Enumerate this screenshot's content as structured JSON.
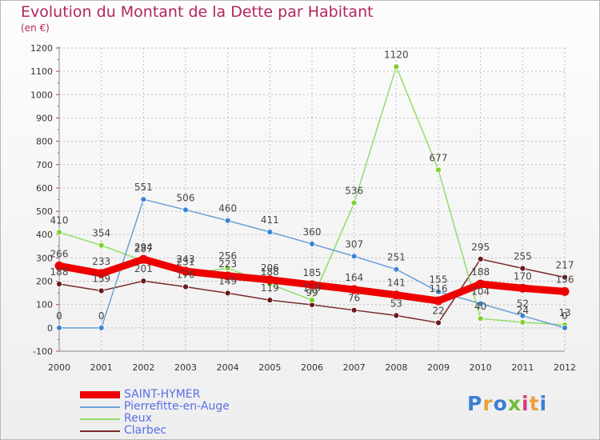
{
  "title": "Evolution du Montant de la Dette par Habitant",
  "subtitle": "(en €)",
  "logo": {
    "text": "Proxiti",
    "colors": [
      "#3a7fd5",
      "#e8a23c",
      "#3a7fd5",
      "#6fbf3a",
      "#d83a7f",
      "#e8a23c",
      "#3a7fd5"
    ]
  },
  "chart_data": {
    "type": "line",
    "x": [
      "2000",
      "2001",
      "2002",
      "2003",
      "2004",
      "2005",
      "2006",
      "2007",
      "2008",
      "2009",
      "2010",
      "2011",
      "2012"
    ],
    "ylim": [
      -100,
      1200
    ],
    "yticks": [
      -100,
      0,
      100,
      200,
      300,
      400,
      500,
      600,
      700,
      800,
      900,
      1000,
      1100,
      1200
    ],
    "grid": true,
    "legend_position": "bottom-left",
    "series": [
      {
        "name": "Clarbec",
        "color": "#7a2a2a",
        "marker": "#6b1a1a",
        "values": [
          188,
          159,
          201,
          176,
          149,
          119,
          99,
          76,
          53,
          22,
          295,
          255,
          217
        ],
        "labels": [
          "188",
          "159",
          "201",
          "176",
          "149",
          "119",
          "99",
          "76",
          "53",
          "22",
          "295",
          "255",
          "217"
        ]
      },
      {
        "name": "Reux",
        "color": "#90dd6a",
        "marker": "#7fd12f",
        "values": [
          410,
          354,
          287,
          231,
          256,
          188,
          119,
          536,
          1120,
          677,
          40,
          24,
          13
        ],
        "labels": [
          "410",
          "354",
          "287",
          "231",
          "256",
          "188",
          "119",
          "536",
          "1120",
          "677",
          "40",
          "24",
          "13"
        ]
      },
      {
        "name": "Pierrefitte-en-Auge",
        "color": "#6aa0d8",
        "marker": "#3a86d6",
        "values": [
          0,
          0,
          551,
          506,
          460,
          411,
          360,
          307,
          251,
          155,
          104,
          52,
          0
        ],
        "labels": [
          "0",
          "0",
          "551",
          "506",
          "460",
          "411",
          "360",
          "307",
          "251",
          "155",
          "104",
          "52",
          "0"
        ]
      },
      {
        "name": "SAINT-HYMER",
        "color": "#ee0000",
        "marker": "#ee0000",
        "values": [
          266,
          233,
          294,
          243,
          223,
          206,
          185,
          164,
          141,
          116,
          188,
          170,
          156
        ],
        "labels": [
          "266",
          "233",
          "294",
          "243",
          "223",
          "206",
          "185",
          "164",
          "141",
          "116",
          "188",
          "170",
          "156"
        ]
      }
    ],
    "legend_order": [
      "SAINT-HYMER",
      "Pierrefitte-en-Auge",
      "Reux",
      "Clarbec"
    ]
  }
}
